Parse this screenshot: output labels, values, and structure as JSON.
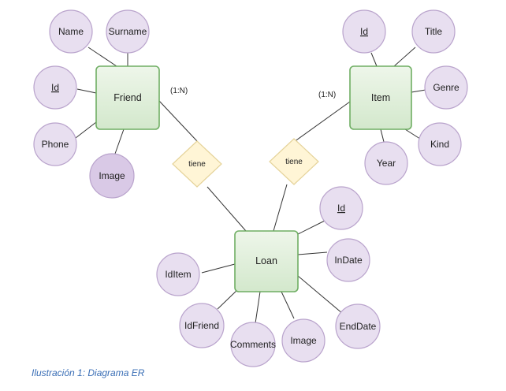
{
  "entities": {
    "friend": "Friend",
    "item": "Item",
    "loan": "Loan"
  },
  "relationships": {
    "friend_loan": "tiene",
    "item_loan": "tiene"
  },
  "cardinalities": {
    "friend": "(1:N)",
    "item": "(1:N)"
  },
  "attributes": {
    "friend": [
      "Name",
      "Surname",
      "Id",
      "Phone",
      "Image"
    ],
    "item": [
      "Id",
      "Title",
      "Genre",
      "Kind",
      "Year"
    ],
    "loan": [
      "Id",
      "InDate",
      "EndDate",
      "Image",
      "Comments",
      "IdFriend",
      "IdItem"
    ]
  },
  "caption": "Ilustración 1: Diagrama ER"
}
